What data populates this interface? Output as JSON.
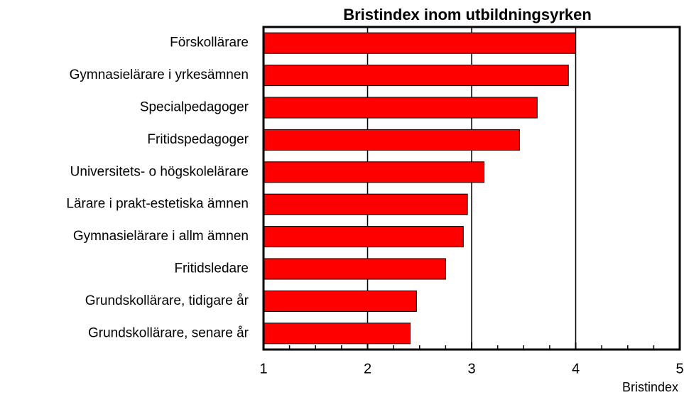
{
  "chart_data": {
    "type": "barh",
    "title": "Bristindex inom utbildningsyrken",
    "x_label": "Bristindex",
    "categories": [
      "Förskollärare",
      "Gymnasielärare i yrkesämnen",
      "Specialpedagoger",
      "Fritidspedagoger",
      "Universitets- o högskolelärare",
      "Lärare i prakt-estetiska ämnen",
      "Gymnasielärare i allm ämnen",
      "Fritidsledare",
      "Grundskollärare, tidigare år",
      "Grundskollärare, senare år"
    ],
    "values": [
      4.0,
      3.93,
      3.63,
      3.46,
      3.12,
      2.96,
      2.92,
      2.75,
      2.47,
      2.41
    ],
    "color": "#ff0000",
    "xlim": [
      1,
      5
    ],
    "xticks": [
      1,
      2,
      3,
      4,
      5
    ],
    "xminorticks": [
      1.25,
      1.5,
      1.75,
      2.25,
      2.5,
      2.75,
      3.25,
      3.5,
      3.75,
      4.25,
      4.5,
      4.75
    ],
    "grid": true
  }
}
